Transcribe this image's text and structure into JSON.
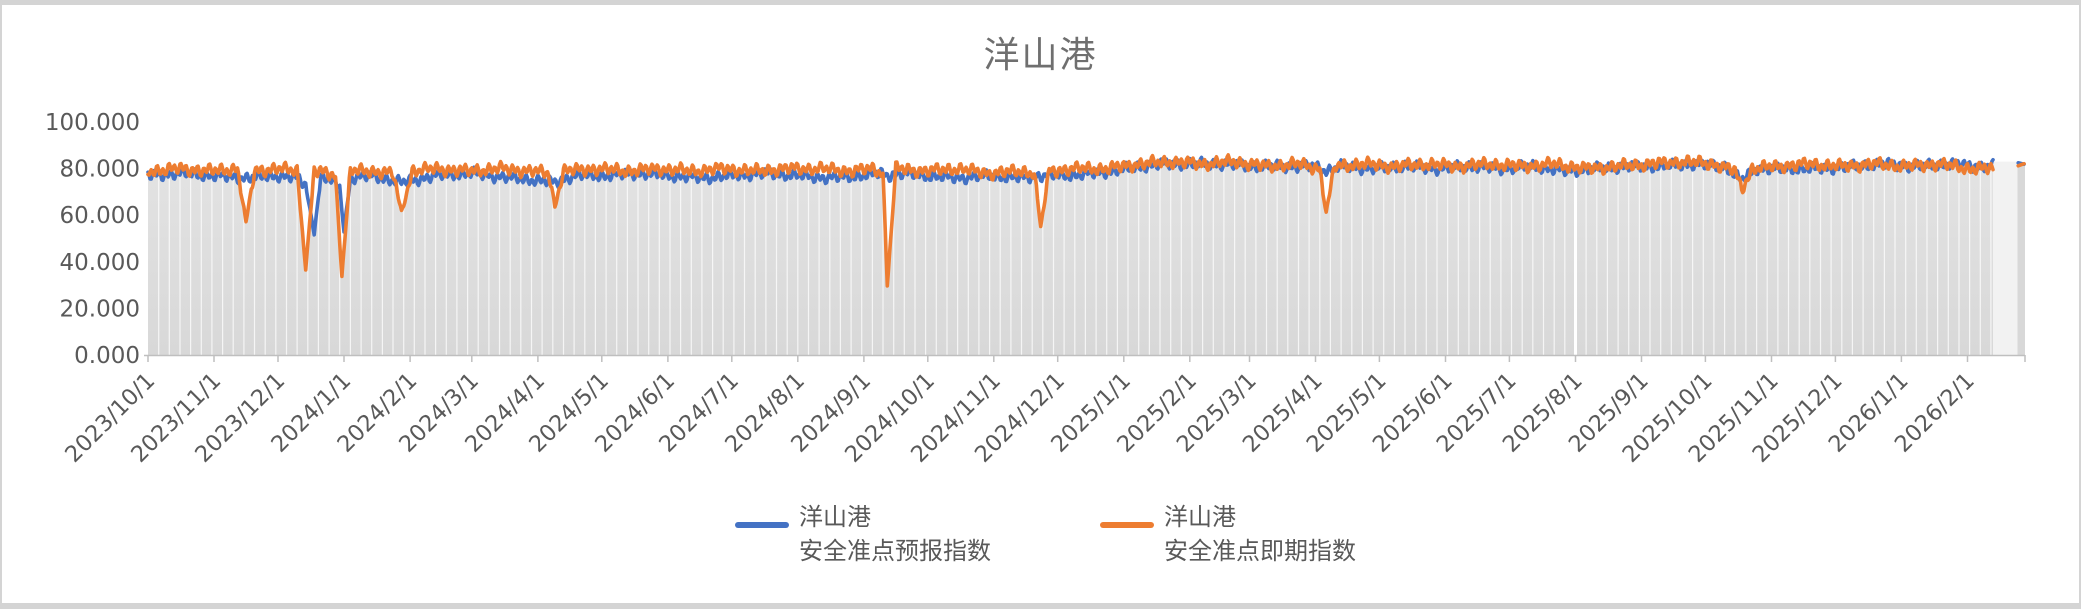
{
  "chart_data": {
    "type": "line",
    "title": "洋山港",
    "y_axis": {
      "ticks": [
        0,
        20,
        40,
        60,
        80,
        100
      ],
      "tick_labels": [
        "0.000",
        "20.000",
        "40.000",
        "60.000",
        "80.000",
        "100.000"
      ],
      "min": 0,
      "max": 100
    },
    "x_axis": {
      "tick_days": [
        0,
        31,
        61,
        92,
        123,
        152,
        183,
        213,
        244,
        274,
        305,
        336,
        366,
        397,
        427,
        458,
        489,
        517,
        548,
        578,
        609,
        639,
        670,
        701,
        731,
        762,
        792,
        823,
        854
      ],
      "tick_labels": [
        "2023/10/1",
        "2023/11/1",
        "2023/12/1",
        "2024/1/1",
        "2024/2/1",
        "2024/3/1",
        "2024/4/1",
        "2024/5/1",
        "2024/6/1",
        "2024/7/1",
        "2024/8/1",
        "2024/9/1",
        "2024/10/1",
        "2024/11/1",
        "2024/12/1",
        "2025/1/1",
        "2025/2/1",
        "2025/3/1",
        "2025/4/1",
        "2025/5/1",
        "2025/6/1",
        "2025/7/1",
        "2025/8/1",
        "2025/9/1",
        "2025/10/1",
        "2025/11/1",
        "2025/12/1",
        "2026/1/1",
        "2026/2/1"
      ],
      "end_day": 881
    },
    "data_end_day": 866,
    "gridlines": {
      "interval_days": 5,
      "color": "#ffffff",
      "highlight_day": 670
    },
    "area": {
      "fill_top": "#e3e3e3",
      "fill_bottom": "#d8d8d8",
      "light_region_days": [
        866,
        877.5
      ],
      "light_region_color": "#f2f2f2",
      "final_column_days": [
        877.5,
        881
      ],
      "final_column_top_value": 82.3
    },
    "series": [
      {
        "name": "洋山港\n安全准点预报指数",
        "color": "#4472C4",
        "noise": 2.9,
        "phase": 1.7,
        "keypoints": [
          [
            0,
            77
          ],
          [
            15,
            78
          ],
          [
            30,
            77
          ],
          [
            46,
            76
          ],
          [
            60,
            77
          ],
          [
            70,
            76
          ],
          [
            74,
            73
          ],
          [
            78,
            52
          ],
          [
            81,
            76
          ],
          [
            86,
            75
          ],
          [
            90,
            72
          ],
          [
            92,
            53
          ],
          [
            95,
            76
          ],
          [
            105,
            77
          ],
          [
            119,
            74
          ],
          [
            135,
            77
          ],
          [
            152,
            78
          ],
          [
            170,
            76
          ],
          [
            183,
            75
          ],
          [
            191,
            74
          ],
          [
            200,
            77
          ],
          [
            215,
            77
          ],
          [
            230,
            78
          ],
          [
            245,
            77
          ],
          [
            260,
            76
          ],
          [
            275,
            77
          ],
          [
            290,
            78
          ],
          [
            305,
            77
          ],
          [
            320,
            76
          ],
          [
            335,
            77
          ],
          [
            344,
            78
          ],
          [
            347,
            77
          ],
          [
            352,
            78
          ],
          [
            365,
            77
          ],
          [
            380,
            76
          ],
          [
            395,
            77
          ],
          [
            410,
            76
          ],
          [
            419,
            77
          ],
          [
            430,
            77
          ],
          [
            445,
            78
          ],
          [
            460,
            80
          ],
          [
            475,
            82
          ],
          [
            490,
            82
          ],
          [
            505,
            82
          ],
          [
            520,
            81
          ],
          [
            535,
            81
          ],
          [
            548,
            81
          ],
          [
            553,
            79
          ],
          [
            560,
            81
          ],
          [
            575,
            80
          ],
          [
            590,
            81
          ],
          [
            605,
            80
          ],
          [
            620,
            81
          ],
          [
            635,
            80
          ],
          [
            650,
            81
          ],
          [
            665,
            79
          ],
          [
            680,
            80
          ],
          [
            695,
            81
          ],
          [
            710,
            81
          ],
          [
            725,
            82
          ],
          [
            740,
            81
          ],
          [
            748,
            75
          ],
          [
            755,
            80
          ],
          [
            770,
            80
          ],
          [
            785,
            80
          ],
          [
            800,
            81
          ],
          [
            815,
            82
          ],
          [
            830,
            81
          ],
          [
            845,
            82
          ],
          [
            860,
            81
          ],
          [
            866,
            81
          ]
        ],
        "final_points": [
          [
            877.8,
            82.5
          ],
          [
            880.6,
            81.9
          ]
        ]
      },
      {
        "name": "洋山港\n安全准点即期指数",
        "color": "#ED7D31",
        "noise": 3.2,
        "phase": 4.3,
        "keypoints": [
          [
            0,
            79
          ],
          [
            15,
            80
          ],
          [
            30,
            79
          ],
          [
            42,
            80
          ],
          [
            46,
            57
          ],
          [
            50,
            79
          ],
          [
            60,
            80
          ],
          [
            70,
            79
          ],
          [
            74,
            37
          ],
          [
            78,
            79
          ],
          [
            84,
            78
          ],
          [
            88,
            77
          ],
          [
            91,
            34
          ],
          [
            95,
            79
          ],
          [
            105,
            79
          ],
          [
            115,
            78
          ],
          [
            119,
            61
          ],
          [
            124,
            79
          ],
          [
            135,
            80
          ],
          [
            150,
            79
          ],
          [
            165,
            80
          ],
          [
            180,
            79
          ],
          [
            188,
            78
          ],
          [
            191,
            64
          ],
          [
            195,
            79
          ],
          [
            210,
            80
          ],
          [
            225,
            79
          ],
          [
            240,
            80
          ],
          [
            255,
            79
          ],
          [
            270,
            80
          ],
          [
            285,
            79
          ],
          [
            300,
            80
          ],
          [
            315,
            80
          ],
          [
            330,
            79
          ],
          [
            340,
            80
          ],
          [
            345,
            78
          ],
          [
            347,
            30
          ],
          [
            351,
            80
          ],
          [
            365,
            79
          ],
          [
            380,
            80
          ],
          [
            395,
            78
          ],
          [
            410,
            79
          ],
          [
            416,
            78
          ],
          [
            419,
            55
          ],
          [
            423,
            79
          ],
          [
            435,
            80
          ],
          [
            450,
            80
          ],
          [
            465,
            82
          ],
          [
            480,
            83
          ],
          [
            495,
            82
          ],
          [
            510,
            83
          ],
          [
            525,
            81
          ],
          [
            540,
            82
          ],
          [
            550,
            80
          ],
          [
            553,
            61
          ],
          [
            557,
            81
          ],
          [
            570,
            82
          ],
          [
            585,
            81
          ],
          [
            600,
            82
          ],
          [
            615,
            81
          ],
          [
            630,
            82
          ],
          [
            645,
            81
          ],
          [
            660,
            82
          ],
          [
            675,
            80
          ],
          [
            690,
            81
          ],
          [
            705,
            82
          ],
          [
            720,
            83
          ],
          [
            735,
            82
          ],
          [
            745,
            79
          ],
          [
            748,
            71
          ],
          [
            753,
            80
          ],
          [
            765,
            81
          ],
          [
            780,
            82
          ],
          [
            795,
            81
          ],
          [
            810,
            82
          ],
          [
            825,
            81
          ],
          [
            840,
            82
          ],
          [
            855,
            80
          ],
          [
            866,
            80
          ]
        ],
        "final_points": [
          [
            877.8,
            81.2
          ],
          [
            880.6,
            82.1
          ]
        ]
      }
    ]
  },
  "legend": {
    "items": [
      {
        "label": "洋山港\n安全准点预报指数",
        "color": "#4472C4"
      },
      {
        "label": "洋山港\n安全准点即期指数",
        "color": "#ED7D31"
      }
    ]
  },
  "colors": {
    "title_text": "#6f6f6f",
    "axis_text": "#595959",
    "axis_line": "#bfbfbf",
    "frame": "#d4d4d4"
  }
}
